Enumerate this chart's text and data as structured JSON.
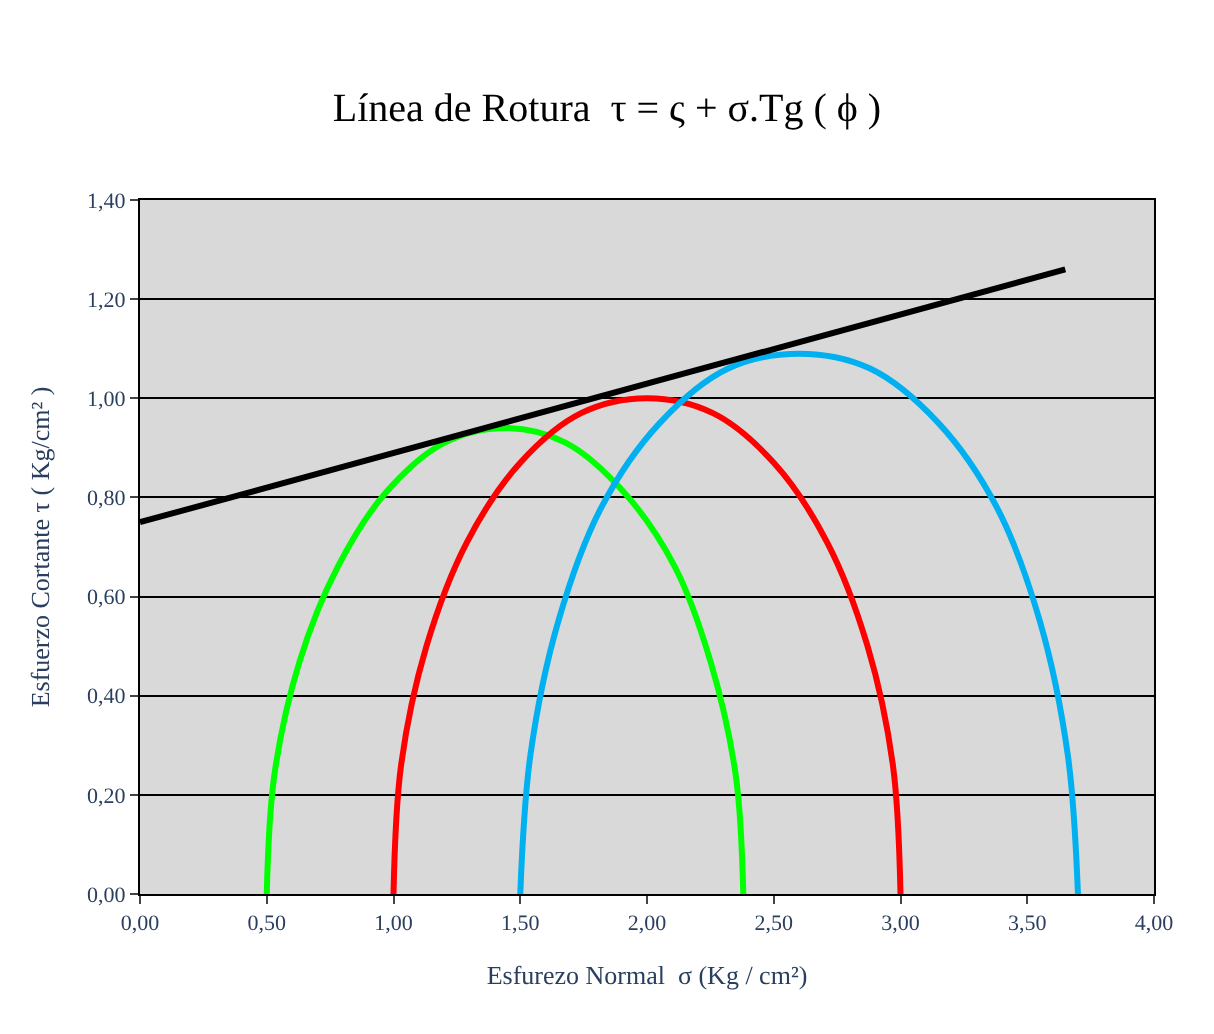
{
  "chart_data": {
    "type": "line",
    "title": "Línea de Rotura  τ = ς + σ.Tg ( ϕ )",
    "xlabel": "Esfurezo Normal  σ (Kg / cm²)",
    "ylabel": "Esfuerzo Cortante τ ( Kg/cm² )",
    "series": [
      {
        "color": "#00ff00",
        "x": [
          0.5,
          0.53,
          0.63,
          0.78,
          0.97,
          1.2,
          1.44,
          1.68,
          1.91,
          2.11,
          2.25,
          2.35,
          2.38
        ],
        "values": [
          0,
          0.24,
          0.47,
          0.66,
          0.81,
          0.91,
          0.94,
          0.91,
          0.81,
          0.66,
          0.47,
          0.24,
          0
        ]
      },
      {
        "color": "#ff0000",
        "x": [
          1.0,
          1.03,
          1.13,
          1.29,
          1.5,
          1.74,
          2.0,
          2.26,
          2.5,
          2.71,
          2.87,
          2.97,
          3.0
        ],
        "values": [
          0,
          0.26,
          0.5,
          0.71,
          0.87,
          0.97,
          1.0,
          0.97,
          0.87,
          0.71,
          0.5,
          0.26,
          0
        ]
      },
      {
        "color": "#00b0f0",
        "x": [
          1.5,
          1.54,
          1.65,
          1.82,
          2.05,
          2.32,
          2.6,
          2.88,
          3.15,
          3.38,
          3.55,
          3.66,
          3.7
        ],
        "values": [
          0,
          0.28,
          0.55,
          0.78,
          0.95,
          1.06,
          1.09,
          1.06,
          0.95,
          0.78,
          0.55,
          0.28,
          0
        ]
      },
      {
        "color": "#000000",
        "x": [
          0,
          3.65
        ],
        "values": [
          0.75,
          1.26
        ]
      }
    ],
    "xlim": [
      0,
      4
    ],
    "ylim": [
      0,
      1.4
    ],
    "xticks": [
      {
        "value": 0,
        "label": "0,00"
      },
      {
        "value": 0.5,
        "label": "0,50"
      },
      {
        "value": 1,
        "label": "1,00"
      },
      {
        "value": 1.5,
        "label": "1,50"
      },
      {
        "value": 2,
        "label": "2,00"
      },
      {
        "value": 2.5,
        "label": "2,50"
      },
      {
        "value": 3,
        "label": "3,00"
      },
      {
        "value": 3.5,
        "label": "3,50"
      },
      {
        "value": 4,
        "label": "4,00"
      }
    ],
    "yticks": [
      {
        "value": 0,
        "label": "0,00"
      },
      {
        "value": 0.2,
        "label": "0,20"
      },
      {
        "value": 0.4,
        "label": "0,40"
      },
      {
        "value": 0.6,
        "label": "0,60"
      },
      {
        "value": 0.8,
        "label": "0,80"
      },
      {
        "value": 1,
        "label": "1,00"
      },
      {
        "value": 1.2,
        "label": "1,20"
      },
      {
        "value": 1.4,
        "label": "1,40"
      }
    ],
    "grid": "y",
    "marker": "none",
    "line_style": "solid"
  }
}
